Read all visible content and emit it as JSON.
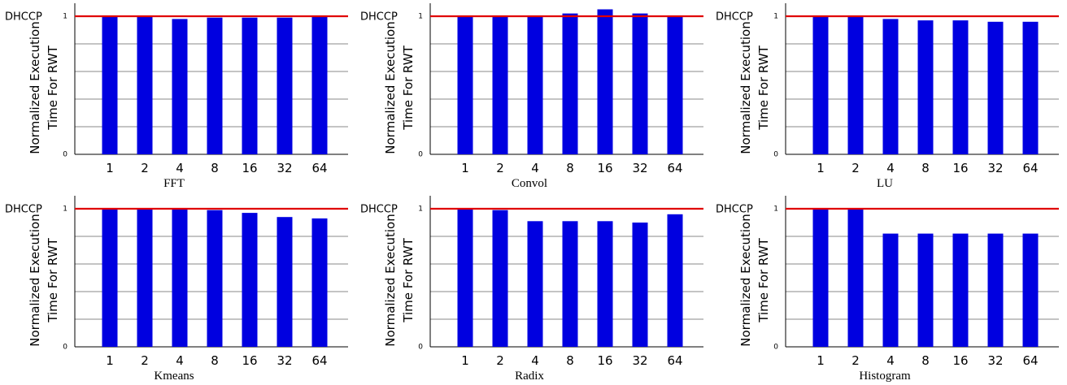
{
  "chart_data": [
    {
      "type": "bar",
      "title": "FFT",
      "ylabel": [
        "Normalized Execution",
        "Time For RWT"
      ],
      "reference_line": {
        "label": "DHCCP",
        "value": 1,
        "color": "#e00000"
      },
      "bar_color": "#0000e0",
      "categories": [
        "1",
        "2",
        "4",
        "8",
        "16",
        "32",
        "64"
      ],
      "values": [
        1.0,
        1.0,
        0.98,
        0.99,
        0.99,
        0.99,
        1.0
      ],
      "yticks": [
        "0",
        "1"
      ],
      "ylim": [
        0,
        1.05
      ],
      "grid": "horizontal"
    },
    {
      "type": "bar",
      "title": "Convol",
      "ylabel": [
        "Normalized Execution",
        "Time For RWT"
      ],
      "reference_line": {
        "label": "DHCCP",
        "value": 1,
        "color": "#e00000"
      },
      "bar_color": "#0000e0",
      "categories": [
        "1",
        "2",
        "4",
        "8",
        "16",
        "32",
        "64"
      ],
      "values": [
        1.0,
        1.0,
        1.0,
        1.02,
        1.05,
        1.02,
        1.0
      ],
      "yticks": [
        "0",
        "1"
      ],
      "ylim": [
        0,
        1.05
      ],
      "grid": "horizontal"
    },
    {
      "type": "bar",
      "title": "LU",
      "ylabel": [
        "Normalized Execution",
        "Time For RWT"
      ],
      "reference_line": {
        "label": "DHCCP",
        "value": 1,
        "color": "#e00000"
      },
      "bar_color": "#0000e0",
      "categories": [
        "1",
        "2",
        "4",
        "8",
        "16",
        "32",
        "64"
      ],
      "values": [
        1.0,
        1.0,
        0.98,
        0.97,
        0.97,
        0.96,
        0.96
      ],
      "yticks": [
        "0",
        "1"
      ],
      "ylim": [
        0,
        1.05
      ],
      "grid": "horizontal"
    },
    {
      "type": "bar",
      "title": "Kmeans",
      "ylabel": [
        "Normalized Execution",
        "Time For RWT"
      ],
      "reference_line": {
        "label": "DHCCP",
        "value": 1,
        "color": "#e00000"
      },
      "bar_color": "#0000e0",
      "categories": [
        "1",
        "2",
        "4",
        "8",
        "16",
        "32",
        "64"
      ],
      "values": [
        1.0,
        1.0,
        1.0,
        0.99,
        0.97,
        0.94,
        0.93
      ],
      "yticks": [
        "0",
        "1"
      ],
      "ylim": [
        0,
        1.05
      ],
      "grid": "horizontal"
    },
    {
      "type": "bar",
      "title": "Radix",
      "ylabel": [
        "Normalized Execution",
        "Time For RWT"
      ],
      "reference_line": {
        "label": "DHCCP",
        "value": 1,
        "color": "#e00000"
      },
      "bar_color": "#0000e0",
      "categories": [
        "1",
        "2",
        "4",
        "8",
        "16",
        "32",
        "64"
      ],
      "values": [
        1.0,
        0.99,
        0.91,
        0.91,
        0.91,
        0.9,
        0.96
      ],
      "yticks": [
        "0",
        "1"
      ],
      "ylim": [
        0,
        1.05
      ],
      "grid": "horizontal"
    },
    {
      "type": "bar",
      "title": "Histogram",
      "ylabel": [
        "Normalized Execution",
        "Time For RWT"
      ],
      "reference_line": {
        "label": "DHCCP",
        "value": 1,
        "color": "#e00000"
      },
      "bar_color": "#0000e0",
      "categories": [
        "1",
        "2",
        "4",
        "8",
        "16",
        "32",
        "64"
      ],
      "values": [
        1.0,
        1.0,
        0.82,
        0.82,
        0.82,
        0.82,
        0.82
      ],
      "yticks": [
        "0",
        "1"
      ],
      "ylim": [
        0,
        1.05
      ],
      "grid": "horizontal"
    }
  ]
}
